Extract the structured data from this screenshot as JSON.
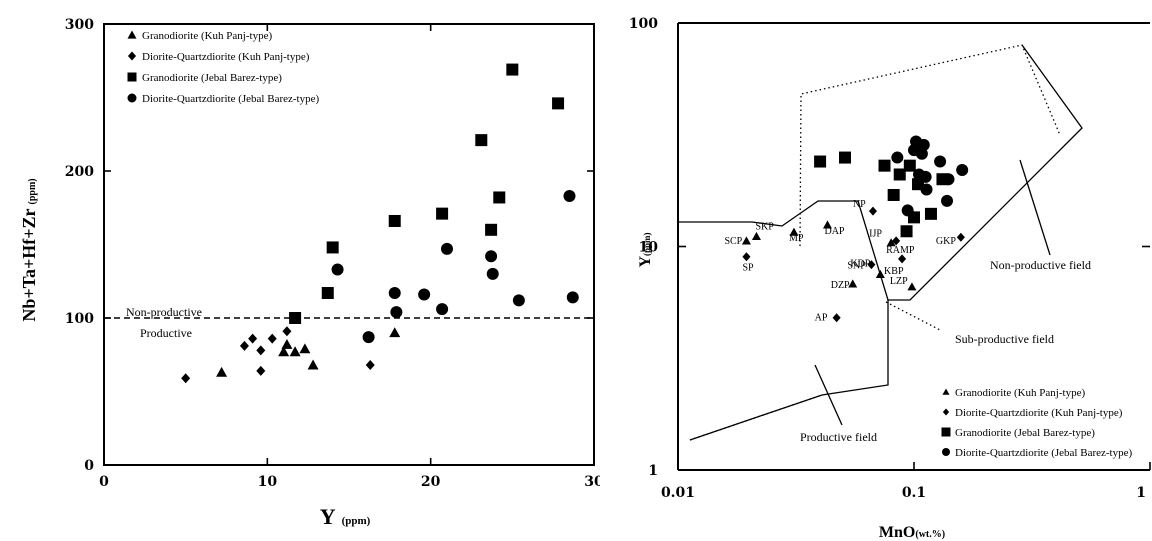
{
  "chart_data": [
    {
      "type": "scatter",
      "xlabel": "Y",
      "xlabel_unit": "(ppm)",
      "ylabel": "Nb+Ta+Hf+Zr",
      "ylabel_unit": "(ppm)",
      "xlim": [
        0,
        30
      ],
      "ylim": [
        0,
        300
      ],
      "xticks": [
        0,
        10,
        20,
        30
      ],
      "yticks": [
        0,
        100,
        200,
        300
      ],
      "legend": "top-left",
      "threshold": {
        "y": 100,
        "label_above": "Non-productive",
        "label_below": "Productive"
      },
      "series": [
        {
          "name": "Granodiorite (Kuh Panj-type)",
          "marker": "triangle",
          "points": [
            [
              7.2,
              63
            ],
            [
              11,
              77
            ],
            [
              11.2,
              82
            ],
            [
              11.7,
              77
            ],
            [
              12.3,
              79
            ],
            [
              12.8,
              68
            ],
            [
              17.8,
              90
            ]
          ]
        },
        {
          "name": "Diorite-Quartzdiorite (Kuh Panj-type)",
          "marker": "diamond",
          "points": [
            [
              5,
              59
            ],
            [
              8.6,
              81
            ],
            [
              9.1,
              86
            ],
            [
              9.6,
              78
            ],
            [
              9.6,
              64
            ],
            [
              10.3,
              86
            ],
            [
              11.2,
              91
            ],
            [
              16.3,
              68
            ]
          ]
        },
        {
          "name": "Granodiorite (Jebal Barez-type)",
          "marker": "square",
          "points": [
            [
              11.7,
              100
            ],
            [
              13.7,
              117
            ],
            [
              14,
              148
            ],
            [
              17.8,
              166
            ],
            [
              20.7,
              171
            ],
            [
              23.1,
              221
            ],
            [
              23.7,
              160
            ],
            [
              24.2,
              182
            ],
            [
              25,
              269
            ],
            [
              27.8,
              246
            ]
          ]
        },
        {
          "name": "Diorite-Quartzdiorite (Jebal Barez-type)",
          "marker": "circle",
          "points": [
            [
              14.3,
              133
            ],
            [
              16.2,
              87
            ],
            [
              17.8,
              117
            ],
            [
              17.9,
              104
            ],
            [
              19.6,
              116
            ],
            [
              20.7,
              106
            ],
            [
              21,
              147
            ],
            [
              23.7,
              142
            ],
            [
              23.8,
              130
            ],
            [
              25.4,
              112
            ],
            [
              28.5,
              183
            ],
            [
              28.7,
              114
            ]
          ]
        }
      ]
    },
    {
      "type": "scatter",
      "xlabel": "MnO",
      "xlabel_unit": "(wt.%)",
      "ylabel": "Y",
      "ylabel_unit": "(ppm)",
      "xscale": "log",
      "yscale": "log",
      "xlim": [
        0.01,
        1
      ],
      "ylim": [
        1,
        100
      ],
      "xtick_labels": [
        "0.01",
        "0.1",
        "1"
      ],
      "ytick_labels": [
        "1",
        "10",
        "100"
      ],
      "legend": "bottom-right",
      "fields": [
        "Non-productive field",
        "Sub-productive field",
        "Productive field"
      ],
      "series": [
        {
          "name": "Granodiorite (Kuh Panj-type)",
          "marker": "triangle",
          "points": [
            {
              "x": 0.0195,
              "y": 10.6,
              "label": "SCP"
            },
            {
              "x": 0.0215,
              "y": 11.1,
              "label": "SKP"
            },
            {
              "x": 0.031,
              "y": 11.6,
              "label": "MP"
            },
            {
              "x": 0.043,
              "y": 12.5,
              "label": "DAP"
            },
            {
              "x": 0.08,
              "y": 10.4,
              "label": "IJP"
            },
            {
              "x": 0.072,
              "y": 7.5,
              "label": "KDP"
            },
            {
              "x": 0.098,
              "y": 6.6,
              "label": "LZP"
            },
            {
              "x": 0.055,
              "y": 6.8,
              "label": "DZP"
            }
          ]
        },
        {
          "name": "Diorite-Quartzdiorite (Kuh Panj-type)",
          "marker": "diamond",
          "points": [
            {
              "x": 0.0195,
              "y": 9.0,
              "label": "SP"
            },
            {
              "x": 0.067,
              "y": 14.4,
              "label": "NP"
            },
            {
              "x": 0.084,
              "y": 10.6,
              "label": "RAMP"
            },
            {
              "x": 0.066,
              "y": 8.3,
              "label": "SNP"
            },
            {
              "x": 0.089,
              "y": 8.8,
              "label": "KBP"
            },
            {
              "x": 0.158,
              "y": 11.0,
              "label": "GKP"
            },
            {
              "x": 0.047,
              "y": 4.8,
              "label": "AP"
            }
          ]
        },
        {
          "name": "Granodiorite (Jebal Barez-type)",
          "marker": "square",
          "points": [
            [
              0.04,
              24
            ],
            [
              0.051,
              25
            ],
            [
              0.075,
              23
            ],
            [
              0.082,
              17
            ],
            [
              0.087,
              21
            ],
            [
              0.093,
              11.7
            ],
            [
              0.096,
              23
            ],
            [
              0.1,
              13.5
            ],
            [
              0.104,
              19
            ],
            [
              0.118,
              14
            ],
            [
              0.132,
              20
            ]
          ]
        },
        {
          "name": "Diorite-Quartzdiorite (Jebal Barez-type)",
          "marker": "circle",
          "points": [
            [
              0.085,
              25
            ],
            [
              0.094,
              14.5
            ],
            [
              0.1,
              27
            ],
            [
              0.102,
              29.5
            ],
            [
              0.105,
              21
            ],
            [
              0.108,
              26
            ],
            [
              0.11,
              28.5
            ],
            [
              0.112,
              20.5
            ],
            [
              0.113,
              18
            ],
            [
              0.129,
              24
            ],
            [
              0.138,
              16
            ],
            [
              0.14,
              20
            ],
            [
              0.16,
              22
            ]
          ]
        }
      ]
    }
  ]
}
